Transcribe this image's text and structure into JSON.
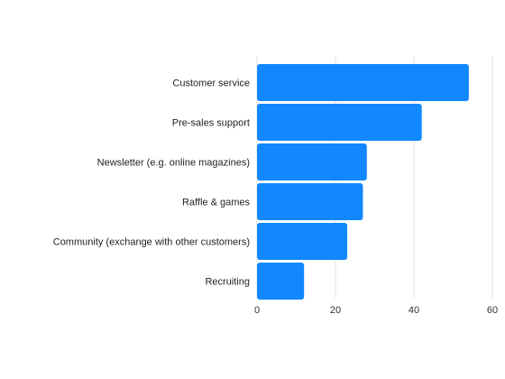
{
  "chart_data": {
    "type": "bar",
    "orientation": "horizontal",
    "categories": [
      "Customer service",
      "Pre-sales support",
      "Newsletter (e.g. online magazines)",
      "Raffle & games",
      "Community (exchange with other customers)",
      "Recruiting"
    ],
    "values": [
      54,
      42,
      28,
      27,
      23,
      12
    ],
    "xlim": [
      0,
      60
    ],
    "xticks": [
      "0",
      "20",
      "40",
      "60"
    ],
    "title": "",
    "xlabel": "",
    "ylabel": "",
    "grid": "vertical",
    "bar_color": "#1188ff"
  }
}
